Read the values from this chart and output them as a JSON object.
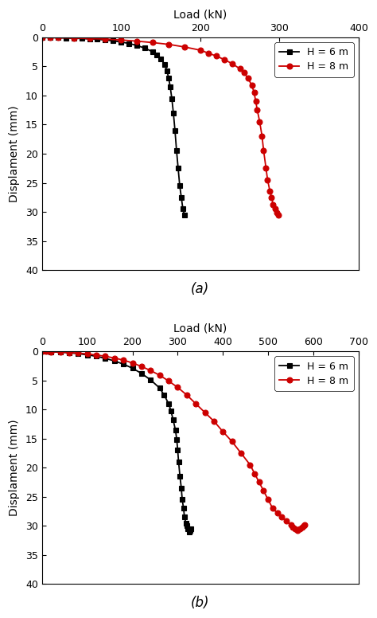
{
  "plot_a": {
    "xlabel": "Load (kN)",
    "ylabel": "Displament (mm)",
    "xlim": [
      0,
      400
    ],
    "ylim": [
      40,
      0
    ],
    "xticks": [
      0,
      100,
      200,
      300,
      400
    ],
    "yticks": [
      0,
      5,
      10,
      15,
      20,
      25,
      30,
      35,
      40
    ],
    "label": "(a)",
    "h6_load": [
      0,
      10,
      20,
      30,
      40,
      50,
      60,
      70,
      80,
      90,
      100,
      110,
      120,
      130,
      140,
      145,
      150,
      155,
      158,
      160,
      162,
      164,
      166,
      168,
      170,
      172,
      174,
      176,
      178,
      180
    ],
    "h6_disp": [
      0,
      0.03,
      0.06,
      0.1,
      0.15,
      0.2,
      0.27,
      0.35,
      0.45,
      0.6,
      0.8,
      1.05,
      1.4,
      1.85,
      2.5,
      3.0,
      3.7,
      4.6,
      5.8,
      7.0,
      8.5,
      10.5,
      13.0,
      16.0,
      19.5,
      22.5,
      25.5,
      27.5,
      29.5,
      30.5
    ],
    "h8_load": [
      0,
      10,
      20,
      40,
      60,
      80,
      100,
      120,
      140,
      160,
      180,
      200,
      210,
      220,
      230,
      240,
      250,
      255,
      260,
      265,
      268,
      270,
      272,
      275,
      278,
      280,
      283,
      285,
      288,
      290,
      292,
      295,
      297,
      299
    ],
    "h8_disp": [
      0,
      0.03,
      0.06,
      0.12,
      0.2,
      0.3,
      0.45,
      0.65,
      0.9,
      1.2,
      1.65,
      2.2,
      2.7,
      3.2,
      3.8,
      4.5,
      5.4,
      6.0,
      7.0,
      8.2,
      9.5,
      11.0,
      12.5,
      14.5,
      17.0,
      19.5,
      22.5,
      24.5,
      26.5,
      27.5,
      28.8,
      29.5,
      30.2,
      30.5
    ]
  },
  "plot_b": {
    "xlabel": "Load (kN)",
    "ylabel": "Displament (mm)",
    "xlim": [
      0,
      700
    ],
    "ylim": [
      40,
      0
    ],
    "xticks": [
      0,
      100,
      200,
      300,
      400,
      500,
      600,
      700
    ],
    "yticks": [
      0,
      5,
      10,
      15,
      20,
      25,
      30,
      35,
      40
    ],
    "label": "(b)",
    "h6_load": [
      0,
      10,
      20,
      40,
      60,
      80,
      100,
      120,
      140,
      160,
      180,
      200,
      220,
      240,
      260,
      270,
      280,
      285,
      290,
      295,
      298,
      300,
      302,
      305,
      308,
      310,
      313,
      315,
      318,
      320,
      322,
      325,
      328,
      330
    ],
    "h6_disp": [
      0,
      0.03,
      0.07,
      0.15,
      0.25,
      0.4,
      0.6,
      0.85,
      1.2,
      1.65,
      2.2,
      2.9,
      3.8,
      4.9,
      6.3,
      7.5,
      9.0,
      10.2,
      11.8,
      13.5,
      15.2,
      17.0,
      19.0,
      21.5,
      23.5,
      25.5,
      27.0,
      28.5,
      29.5,
      30.0,
      30.5,
      31.0,
      30.8,
      30.5
    ],
    "h8_load": [
      0,
      10,
      20,
      40,
      60,
      80,
      100,
      120,
      140,
      160,
      180,
      200,
      220,
      240,
      260,
      280,
      300,
      320,
      340,
      360,
      380,
      400,
      420,
      440,
      460,
      470,
      480,
      490,
      500,
      510,
      520,
      530,
      540,
      550,
      555,
      560,
      565,
      570,
      575,
      578,
      580
    ],
    "h8_disp": [
      0,
      0.03,
      0.06,
      0.12,
      0.2,
      0.3,
      0.45,
      0.62,
      0.85,
      1.15,
      1.5,
      2.0,
      2.6,
      3.3,
      4.1,
      5.1,
      6.2,
      7.5,
      9.0,
      10.5,
      12.0,
      13.8,
      15.5,
      17.5,
      19.5,
      21.0,
      22.5,
      24.0,
      25.5,
      27.0,
      27.8,
      28.5,
      29.2,
      29.8,
      30.2,
      30.5,
      30.8,
      30.5,
      30.2,
      30.0,
      29.8
    ]
  },
  "color_h6": "#000000",
  "color_h8": "#cc0000",
  "legend_h6": "H = 6 m",
  "legend_h8": "H = 8 m",
  "marker_h6": "s",
  "marker_h8": "o",
  "markersize": 5,
  "linewidth": 1.3
}
